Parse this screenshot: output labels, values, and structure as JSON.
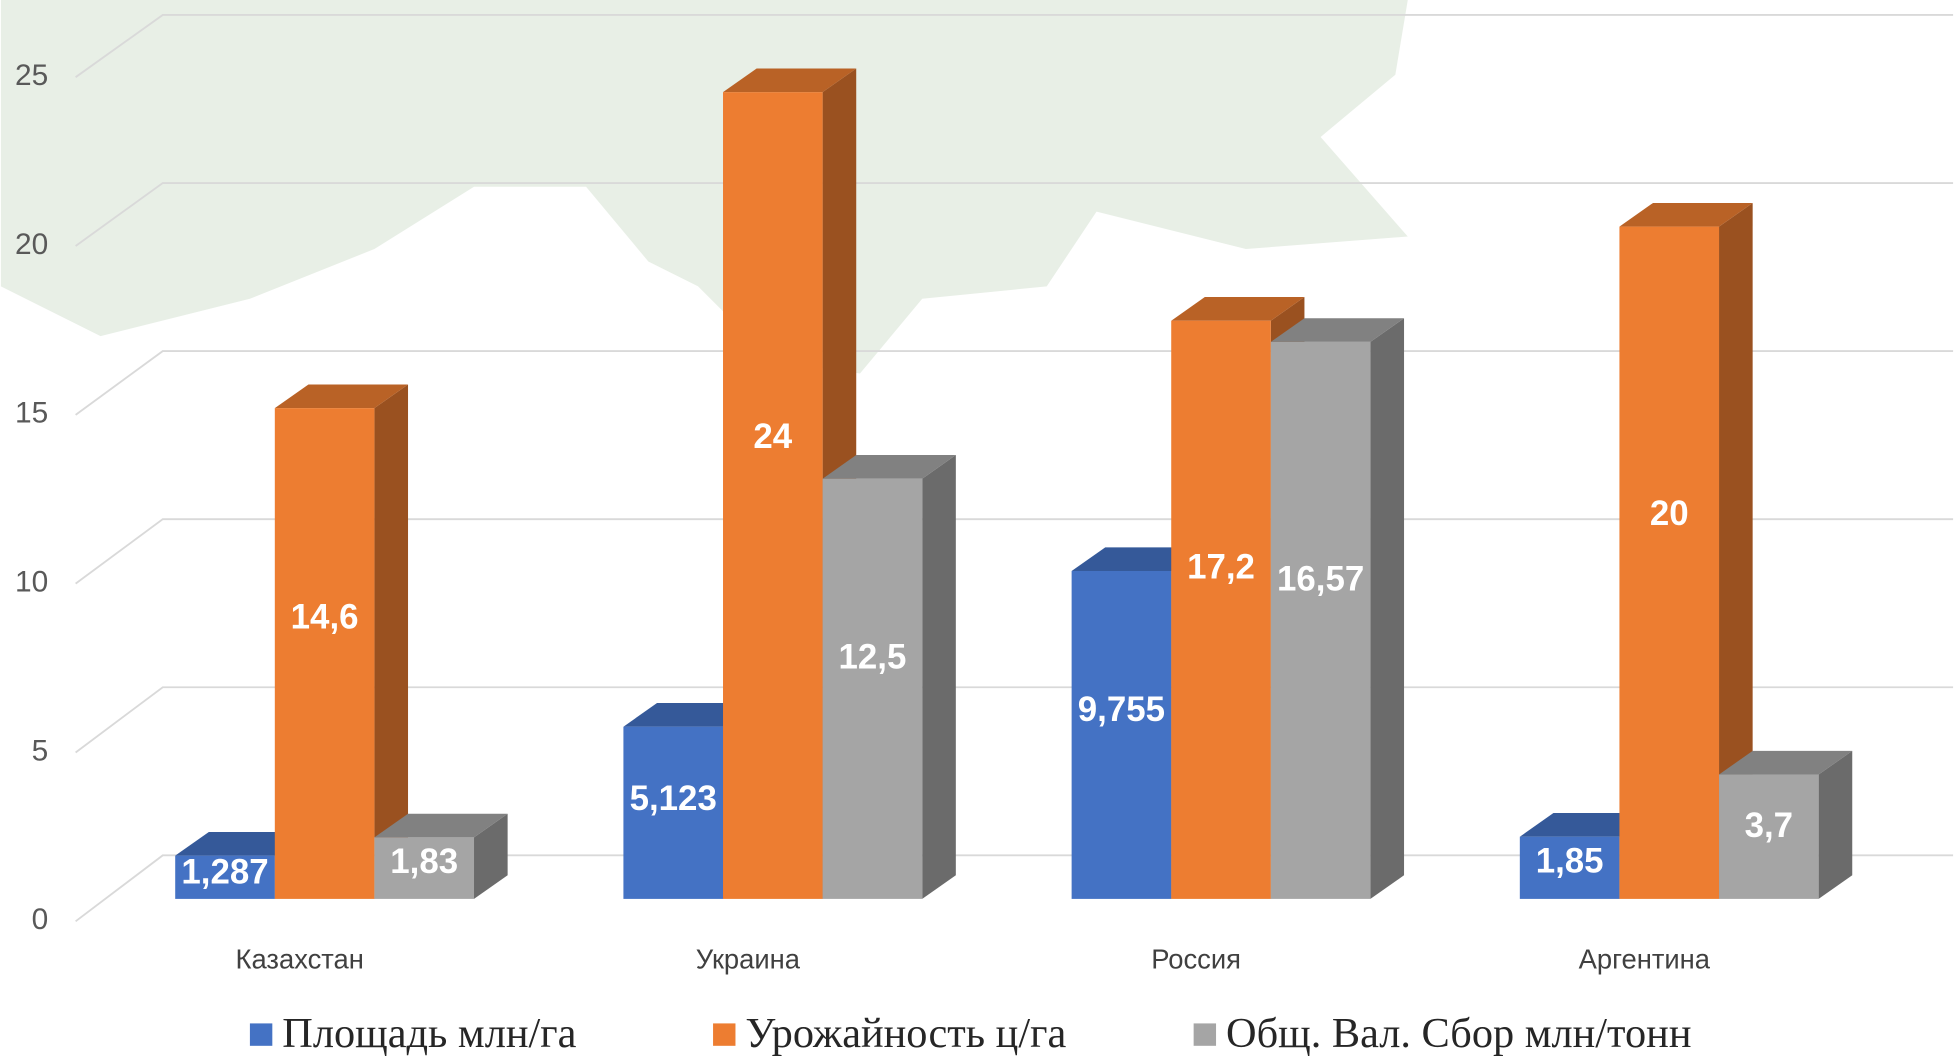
{
  "chart_data": {
    "type": "bar3d",
    "categories": [
      "Казахстан",
      "Украина",
      "Россия",
      "Аргентина"
    ],
    "series": [
      {
        "name": "Площадь млн/га",
        "color": "#4472c4",
        "values": [
          1.287,
          5.123,
          9.755,
          1.85
        ],
        "value_labels": [
          "1,287",
          "5,123",
          "9,755",
          "1,85"
        ]
      },
      {
        "name": "Урожайность ц/га",
        "color": "#ed7d31",
        "values": [
          14.6,
          24,
          17.2,
          20
        ],
        "value_labels": [
          "14,6",
          "24",
          "17,2",
          "20"
        ]
      },
      {
        "name": "Общ. Вал. Сбор млн/тонн",
        "color": "#a5a5a5",
        "values": [
          1.83,
          12.5,
          16.57,
          3.7
        ],
        "value_labels": [
          "1,83",
          "12,5",
          "16,57",
          "3,7"
        ]
      }
    ],
    "ylim": [
      0,
      25
    ],
    "yticks": [
      0,
      5,
      10,
      15,
      20,
      25
    ],
    "grid": true,
    "legend": "bottom"
  }
}
